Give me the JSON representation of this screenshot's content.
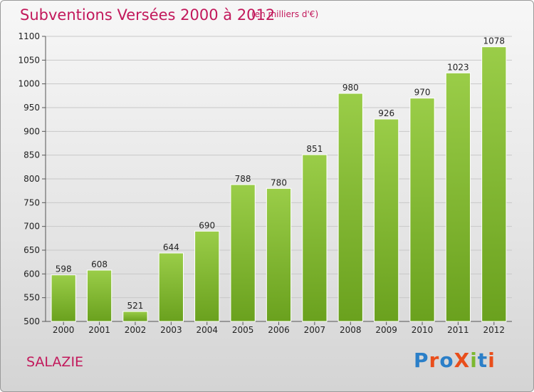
{
  "header": {
    "title": "Subventions Versées 2000 à 2012",
    "subtitle": "(en milliers d'€)"
  },
  "footer": {
    "commune": "SALAZIE",
    "logo_text": "ProXiti",
    "logo_colors": [
      "#2b7fc8",
      "#e94e1b",
      "#2b7fc8",
      "#e94e1b",
      "#7cb82f",
      "#2b7fc8",
      "#e94e1b"
    ]
  },
  "chart_data": {
    "type": "bar",
    "categories": [
      "2000",
      "2001",
      "2002",
      "2003",
      "2004",
      "2005",
      "2006",
      "2007",
      "2008",
      "2009",
      "2010",
      "2011",
      "2012"
    ],
    "values": [
      598,
      608,
      521,
      644,
      690,
      788,
      780,
      851,
      980,
      926,
      970,
      1023,
      1078
    ],
    "ylim": [
      500,
      1100
    ],
    "yticks": [
      500,
      550,
      600,
      650,
      700,
      750,
      800,
      850,
      900,
      950,
      1000,
      1050,
      1100
    ],
    "grid": true,
    "bar_color_top": "#9acd48",
    "bar_color_bottom": "#6aa11e"
  }
}
